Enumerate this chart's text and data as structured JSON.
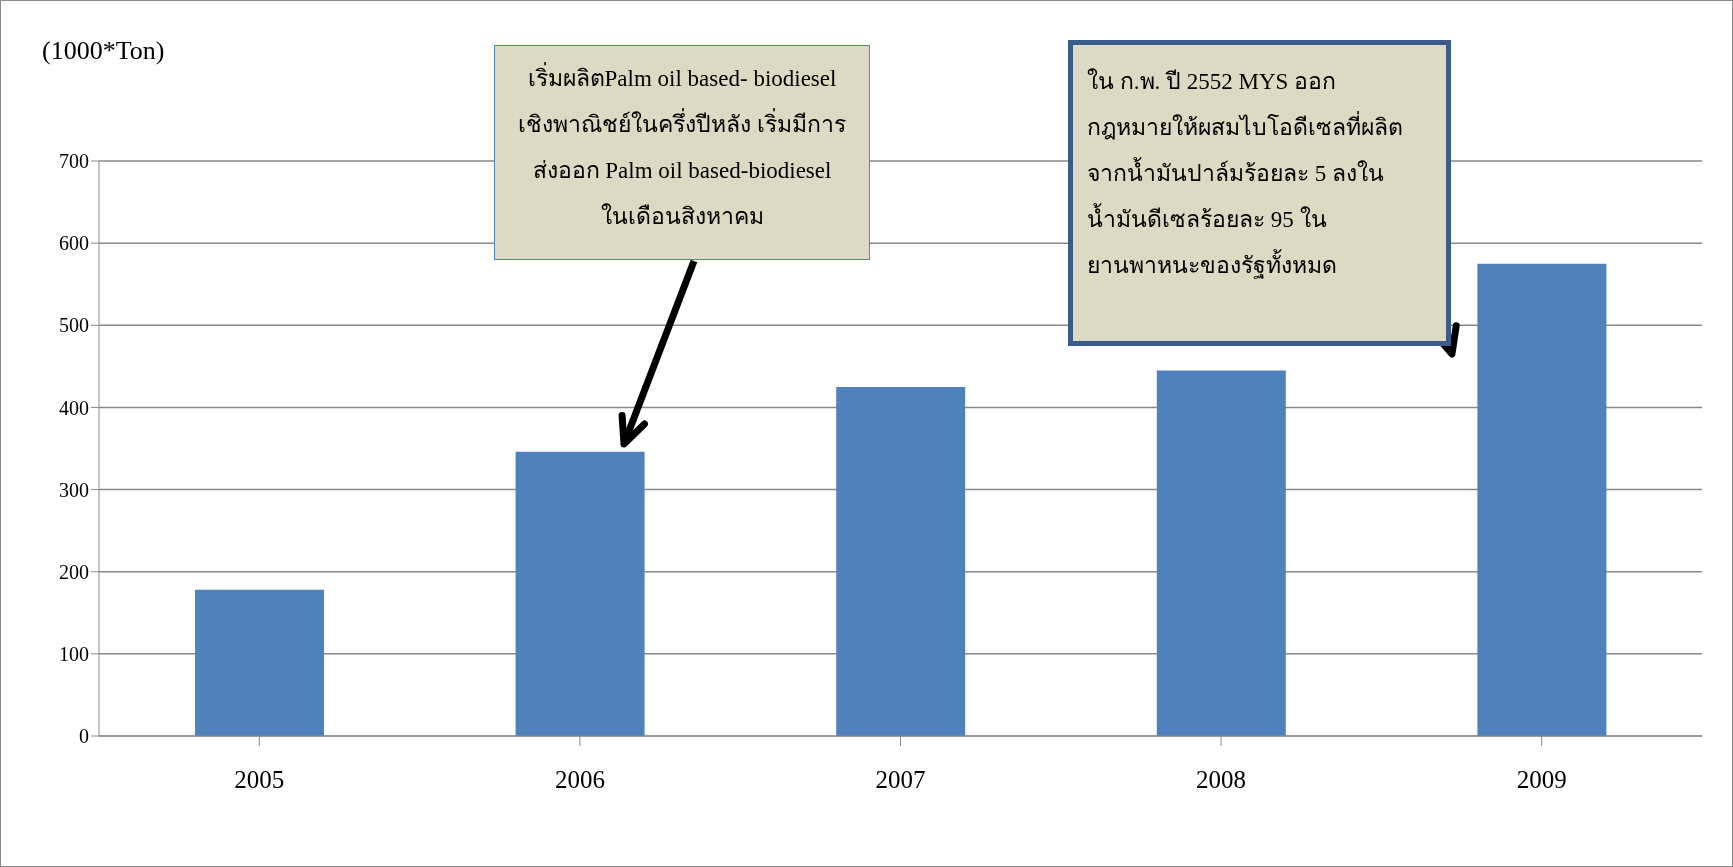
{
  "chart_data": {
    "type": "bar",
    "ylabel": "(1000*Ton)",
    "categories": [
      "2005",
      "2006",
      "2007",
      "2008",
      "2009"
    ],
    "values": [
      178,
      346,
      425,
      445,
      575
    ],
    "color": "#4f81bd",
    "ylim": [
      0,
      700
    ],
    "yticks": [
      0,
      100,
      200,
      300,
      400,
      500,
      600,
      700
    ],
    "grid": "y",
    "annotations": [
      "เริ่มผลิตPalm oil based- biodiesel\nเชิงพาณิชย์ในครึ่งปีหลัง เริ่มมีการ\nส่งออก Palm oil based-biodiesel\nในเดือนสิงหาคม",
      "ใน ก.พ. ปี 2552 MYS ออก\nกฎหมายให้ผสมไบโอดีเซลที่ผลิต\nจากน้ำมันปาล์มร้อยละ 5 ลงใน\nน้ำมันดีเซลร้อยละ 95 ใน\nยานพาหนะของรัฐทั้งหมด"
    ]
  }
}
